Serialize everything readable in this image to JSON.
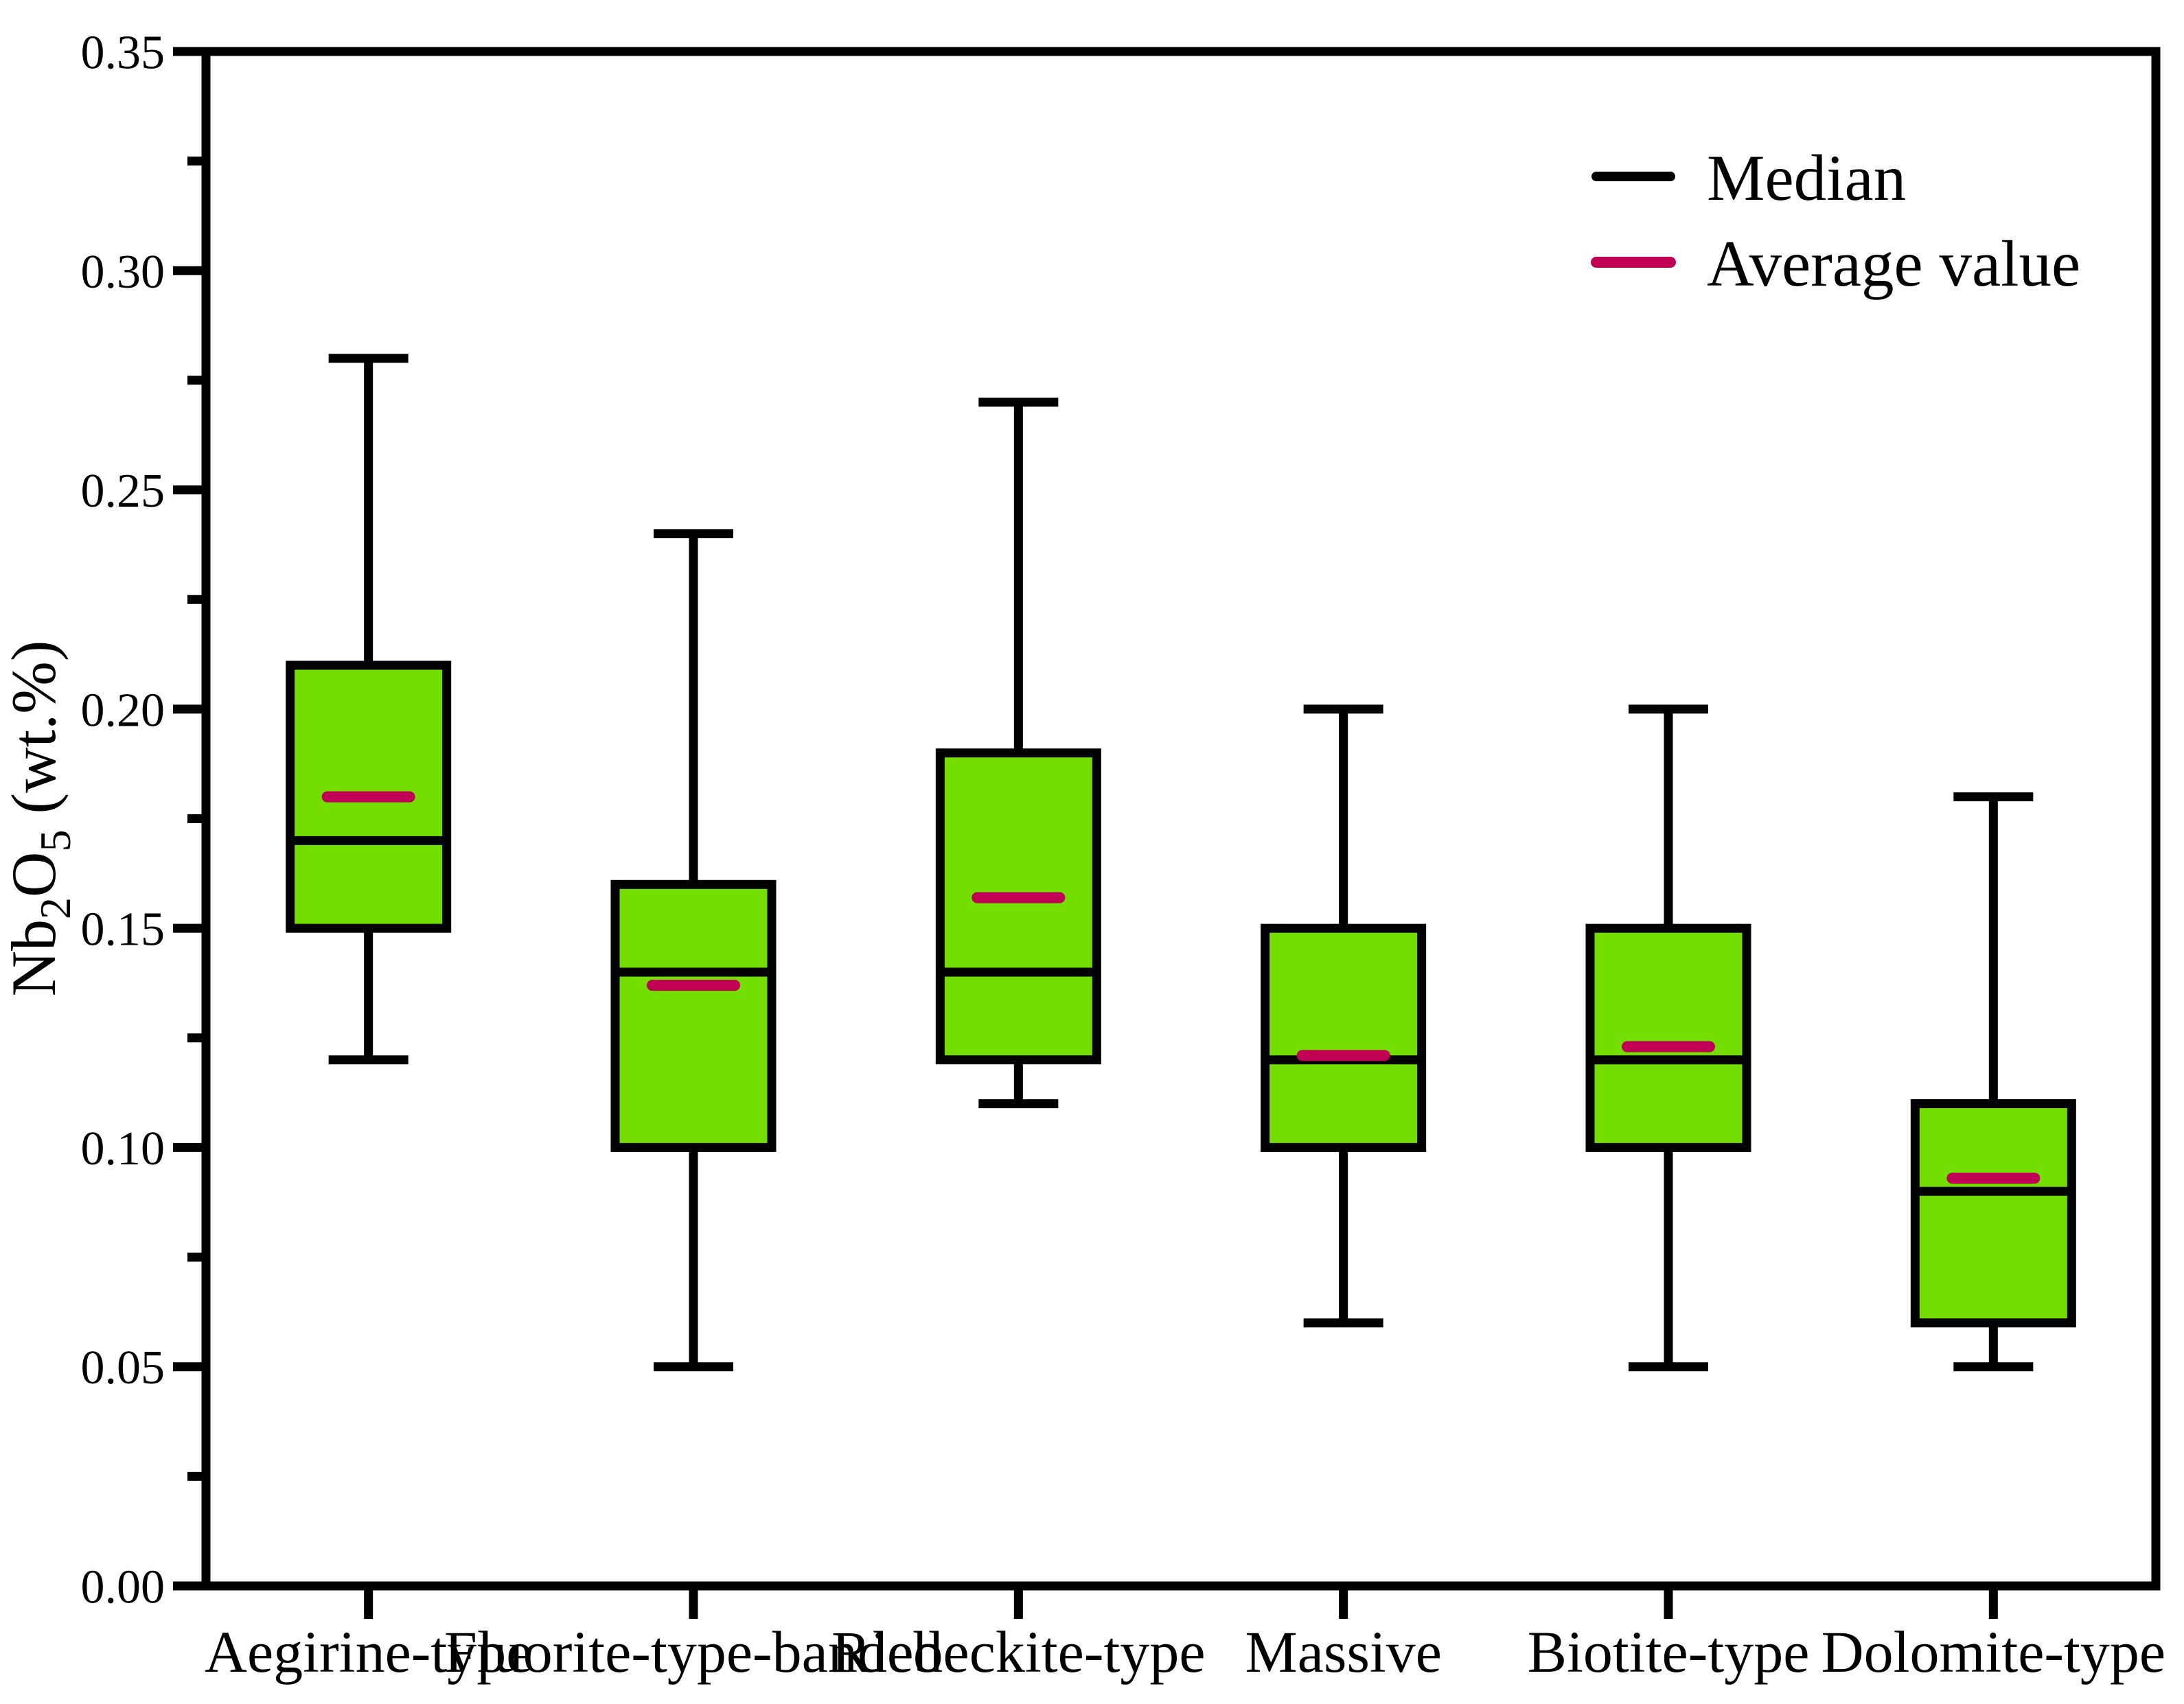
{
  "chart_data": {
    "type": "box",
    "title": "",
    "xlabel": "",
    "ylabel_plain": "Nb2O5 (wt.%)",
    "ylabel_parts": [
      {
        "text": "Nb",
        "sub": false
      },
      {
        "text": "2",
        "sub": true
      },
      {
        "text": "O",
        "sub": false
      },
      {
        "text": "5",
        "sub": true
      },
      {
        "text": " (wt.%)",
        "sub": false
      }
    ],
    "ylim": [
      0.0,
      0.35
    ],
    "ytick_values": [
      0.0,
      0.05,
      0.1,
      0.15,
      0.2,
      0.25,
      0.3,
      0.35
    ],
    "ytick_labels": [
      "0.00",
      "0.05",
      "0.10",
      "0.15",
      "0.20",
      "0.25",
      "0.30",
      "0.35"
    ],
    "ytick_minor_values": [
      0.025,
      0.075,
      0.125,
      0.175,
      0.225,
      0.275,
      0.325
    ],
    "grid": false,
    "categories": [
      "Aegirine-type",
      "Fluorite-type-banded",
      "Riebeckite-type",
      "Massive",
      "Biotite-type",
      "Dolomite-type"
    ],
    "series": [
      {
        "name": "Aegirine-type",
        "whisker_low": 0.12,
        "q1": 0.15,
        "median": 0.17,
        "mean": 0.18,
        "q3": 0.21,
        "whisker_high": 0.28
      },
      {
        "name": "Fluorite-type-banded",
        "whisker_low": 0.05,
        "q1": 0.1,
        "median": 0.14,
        "mean": 0.137,
        "q3": 0.16,
        "whisker_high": 0.24
      },
      {
        "name": "Riebeckite-type",
        "whisker_low": 0.11,
        "q1": 0.12,
        "median": 0.14,
        "mean": 0.157,
        "q3": 0.19,
        "whisker_high": 0.27
      },
      {
        "name": "Massive",
        "whisker_low": 0.06,
        "q1": 0.1,
        "median": 0.12,
        "mean": 0.121,
        "q3": 0.15,
        "whisker_high": 0.2
      },
      {
        "name": "Biotite-type",
        "whisker_low": 0.05,
        "q1": 0.1,
        "median": 0.12,
        "mean": 0.123,
        "q3": 0.15,
        "whisker_high": 0.2
      },
      {
        "name": "Dolomite-type",
        "whisker_low": 0.05,
        "q1": 0.06,
        "median": 0.09,
        "mean": 0.093,
        "q3": 0.11,
        "whisker_high": 0.18
      }
    ],
    "legend": {
      "position": "top-right",
      "items": [
        {
          "label": "Median",
          "color": "#000000"
        },
        {
          "label": "Average value",
          "color": "#C00055"
        }
      ]
    },
    "colors": {
      "box_fill": "#73DE00",
      "box_edge": "#000000",
      "median_line": "#000000",
      "mean_line": "#C00055",
      "background": "#ffffff"
    }
  }
}
